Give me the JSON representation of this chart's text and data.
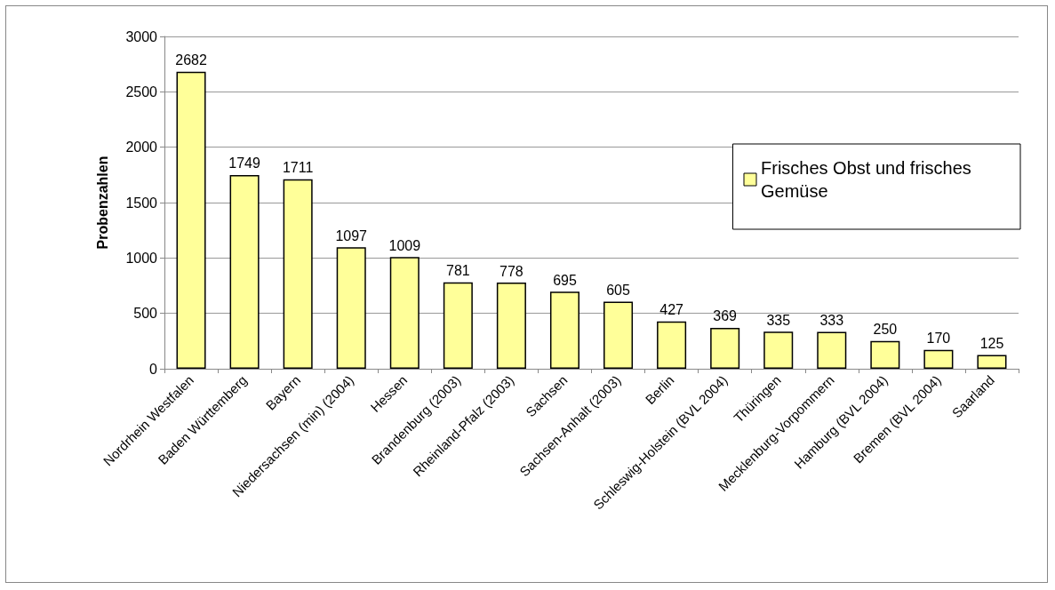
{
  "chart_data": {
    "type": "bar",
    "ylabel": "Probenzahlen",
    "categories": [
      "Nordrhein Westfalen",
      "Baden Württemberg",
      "Bayern",
      "Niedersachsen (min) (2004)",
      "Hessen",
      "Brandenburg (2003)",
      "Rheinland-Pfalz (2003)",
      "Sachsen",
      "Sachsen-Anhalt (2003)",
      "Berlin",
      "Schleswig-Holstein (BVL 2004)",
      "Thüringen",
      "Mecklenburg-Vorpommern",
      "Hamburg (BVL 2004)",
      "Bremen (BVL 2004)",
      "Saarland"
    ],
    "series": [
      {
        "name": "Frisches Obst und frisches Gemüse",
        "color": "#ffff99",
        "values": [
          2682,
          1749,
          1711,
          1097,
          1009,
          781,
          778,
          695,
          605,
          427,
          369,
          335,
          333,
          250,
          170,
          125
        ]
      }
    ],
    "ylim": [
      0,
      3000
    ],
    "yticks": [
      0,
      500,
      1000,
      1500,
      2000,
      2500,
      3000
    ],
    "grid": "y",
    "legend": "right",
    "data_labels": true
  }
}
